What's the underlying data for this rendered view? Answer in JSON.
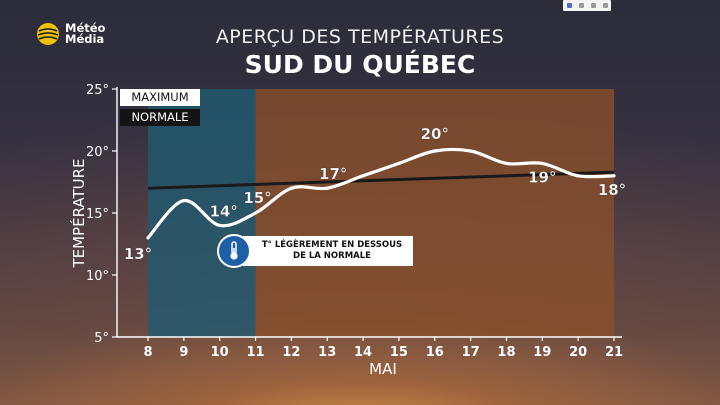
{
  "brand": {
    "logo_line1": "Météo",
    "logo_line2": "Média"
  },
  "header": {
    "title_line1": "APERÇU DES TEMPÉRATURES",
    "title_line2": "SUD DU QUÉBEC"
  },
  "legend": {
    "maximum": "MAXIMUM",
    "normal": "NORMALE"
  },
  "callout": {
    "line1": "T° LÉGÈREMENT EN DESSOUS",
    "line2": "DE LA NORMALE"
  },
  "colors": {
    "period1_band": "#1f5b72",
    "period2_band": "#8a4f2a",
    "max_line": "#ffffff",
    "normal_line": "#1a1a1a",
    "callout_icon": "#1f5fa8"
  },
  "chart_data": {
    "type": "line",
    "xlabel": "MAI",
    "ylabel": "TEMPÉRATURE",
    "ylim": [
      5,
      25
    ],
    "yticks": [
      5,
      10,
      15,
      20,
      25
    ],
    "ytick_labels": [
      "5°",
      "10°",
      "15°",
      "20°",
      "25°"
    ],
    "x": [
      8,
      9,
      10,
      11,
      12,
      13,
      14,
      15,
      16,
      17,
      18,
      19,
      20,
      21
    ],
    "xtick_labels": [
      "8",
      "9",
      "10",
      "11",
      "12",
      "13",
      "14",
      "15",
      "16",
      "17",
      "18",
      "19",
      "20",
      "21"
    ],
    "series": [
      {
        "name": "MAXIMUM",
        "values": [
          13,
          16,
          14,
          15,
          17,
          17,
          18,
          19,
          20,
          20,
          19,
          19,
          18,
          18
        ]
      },
      {
        "name": "NORMALE",
        "values": [
          17,
          17.1,
          17.2,
          17.3,
          17.4,
          17.5,
          17.6,
          17.7,
          17.8,
          17.9,
          18,
          18.1,
          18.2,
          18.3
        ]
      }
    ],
    "shaded_periods": [
      {
        "from": 8,
        "to": 11
      },
      {
        "from": 11,
        "to": 21
      }
    ],
    "annotations": [
      {
        "x": 8,
        "label": "13°"
      },
      {
        "x": 10,
        "label": "14°"
      },
      {
        "x": 11,
        "label": "15°"
      },
      {
        "x": 13,
        "label": "17°"
      },
      {
        "x": 16,
        "label": "20°"
      },
      {
        "x": 19,
        "label": "19°"
      },
      {
        "x": 21,
        "label": "18°"
      }
    ]
  }
}
